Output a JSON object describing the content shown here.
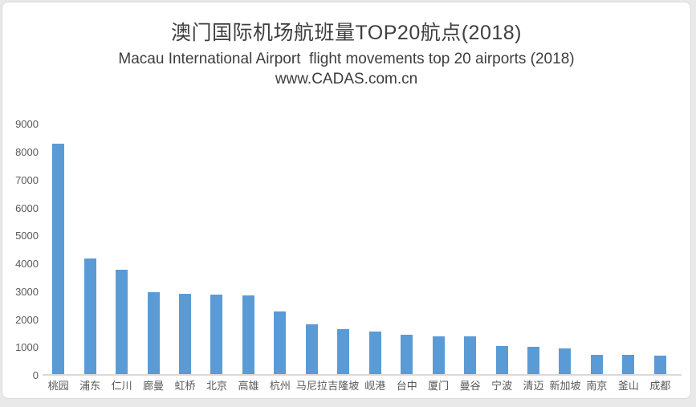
{
  "header": {
    "title": "澳门国际机场航班量TOP20航点(2018)",
    "subtitle": "Macau International Airport  flight movements top 20 airports (2018)",
    "website": "www.CADAS.com.cn"
  },
  "chart_data": {
    "type": "bar",
    "title": "澳门国际机场航班量TOP20航点(2018)",
    "subtitle": "Macau International Airport  flight movements top 20 airports (2018)",
    "watermark": "www.CADAS.com.cn",
    "categories": [
      "桃园",
      "浦东",
      "仁川",
      "廊曼",
      "虹桥",
      "北京",
      "高雄",
      "杭州",
      "马尼拉",
      "吉隆坡",
      "岘港",
      "台中",
      "厦门",
      "曼谷",
      "宁波",
      "清迈",
      "新加坡",
      "南京",
      "釜山",
      "成都"
    ],
    "values": [
      8240,
      4140,
      3740,
      2940,
      2870,
      2860,
      2810,
      2230,
      1770,
      1620,
      1520,
      1410,
      1360,
      1350,
      1000,
      980,
      920,
      690,
      680,
      670
    ],
    "xlabel": "",
    "ylabel": "",
    "ylim": [
      0,
      9000
    ],
    "yticks": [
      0,
      1000,
      2000,
      3000,
      4000,
      5000,
      6000,
      7000,
      8000,
      9000
    ],
    "grid": false,
    "legend": false,
    "bar_color": "#5B9BD5",
    "axis_line_color": "#D9D9D9",
    "tick_label_color": "#595959",
    "title_color": "#3F3F3F"
  }
}
